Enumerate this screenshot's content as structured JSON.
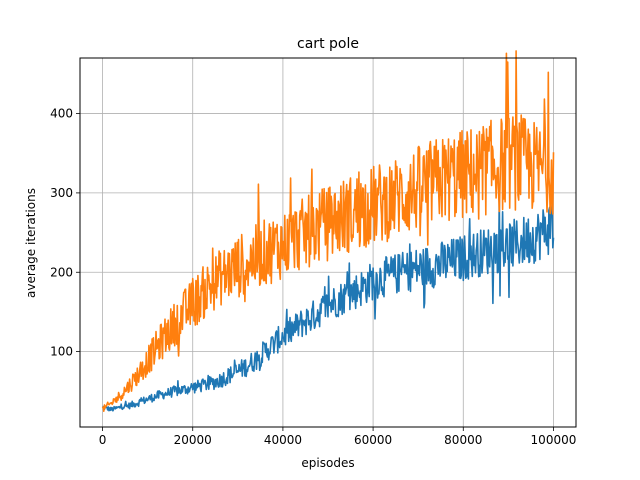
{
  "chart_data": {
    "type": "line",
    "title": "cart pole",
    "xlabel": "episodes",
    "ylabel": "average iterations",
    "xlim": [
      -5000,
      105000
    ],
    "ylim": [
      5,
      470
    ],
    "grid": true,
    "legend": "none",
    "x_ticks": [
      0,
      20000,
      40000,
      60000,
      80000,
      100000
    ],
    "x_tick_labels": [
      "0",
      "20000",
      "40000",
      "60000",
      "80000",
      "100000"
    ],
    "y_ticks": [
      100,
      200,
      300,
      400
    ],
    "y_tick_labels": [
      "100",
      "200",
      "300",
      "400"
    ],
    "series": [
      {
        "color": "#1f77b4",
        "x": [
          0,
          2000,
          4000,
          6000,
          8000,
          10000,
          12000,
          14000,
          16000,
          18000,
          20000,
          22000,
          24000,
          26000,
          28000,
          30000,
          32000,
          34000,
          36000,
          38000,
          40000,
          42000,
          44000,
          46000,
          48000,
          50000,
          52000,
          54000,
          56000,
          58000,
          60000,
          62000,
          64000,
          66000,
          68000,
          70000,
          72000,
          74000,
          76000,
          78000,
          80000,
          82000,
          84000,
          86000,
          88000,
          90000,
          92000,
          94000,
          96000,
          98000,
          100000
        ],
        "y": [
          30,
          27,
          30,
          32,
          36,
          40,
          44,
          47,
          50,
          52,
          55,
          57,
          60,
          64,
          70,
          75,
          82,
          90,
          100,
          110,
          120,
          127,
          135,
          142,
          150,
          158,
          165,
          170,
          176,
          182,
          190,
          193,
          196,
          199,
          202,
          205,
          207,
          209,
          212,
          215,
          218,
          222,
          225,
          228,
          230,
          233,
          236,
          240,
          245,
          252,
          260
        ],
        "amplitude": [
          3,
          3,
          3,
          4,
          5,
          5,
          6,
          6,
          7,
          7,
          8,
          8,
          9,
          10,
          11,
          12,
          13,
          14,
          15,
          16,
          17,
          18,
          19,
          20,
          20,
          21,
          22,
          22,
          23,
          24,
          25,
          25,
          26,
          26,
          27,
          27,
          28,
          28,
          29,
          29,
          30,
          30,
          30,
          31,
          31,
          32,
          32,
          33,
          33,
          34,
          35
        ]
      },
      {
        "color": "#ff7f0e",
        "x": [
          0,
          2000,
          4000,
          6000,
          8000,
          10000,
          12000,
          14000,
          16000,
          18000,
          20000,
          22000,
          24000,
          26000,
          28000,
          30000,
          32000,
          34000,
          36000,
          38000,
          40000,
          42000,
          44000,
          46000,
          48000,
          50000,
          52000,
          54000,
          56000,
          58000,
          60000,
          62000,
          64000,
          66000,
          68000,
          70000,
          72000,
          74000,
          76000,
          78000,
          80000,
          82000,
          84000,
          86000,
          88000,
          90000,
          92000,
          94000,
          96000,
          98000,
          100000
        ],
        "y": [
          27,
          35,
          45,
          58,
          72,
          88,
          105,
          120,
          135,
          148,
          160,
          172,
          183,
          193,
          200,
          207,
          213,
          219,
          225,
          230,
          235,
          241,
          247,
          252,
          257,
          262,
          267,
          272,
          276,
          280,
          284,
          288,
          292,
          296,
          300,
          305,
          310,
          314,
          318,
          321,
          323,
          326,
          329,
          332,
          335,
          338,
          340,
          336,
          333,
          330,
          328
        ],
        "amplitude": [
          4,
          5,
          7,
          10,
          14,
          18,
          22,
          26,
          28,
          30,
          32,
          34,
          35,
          36,
          38,
          40,
          40,
          41,
          42,
          43,
          44,
          44,
          45,
          46,
          47,
          48,
          48,
          49,
          50,
          50,
          51,
          52,
          52,
          53,
          54,
          55,
          56,
          56,
          57,
          58,
          58,
          59,
          60,
          60,
          61,
          62,
          62,
          60,
          58,
          56,
          55
        ]
      }
    ]
  }
}
